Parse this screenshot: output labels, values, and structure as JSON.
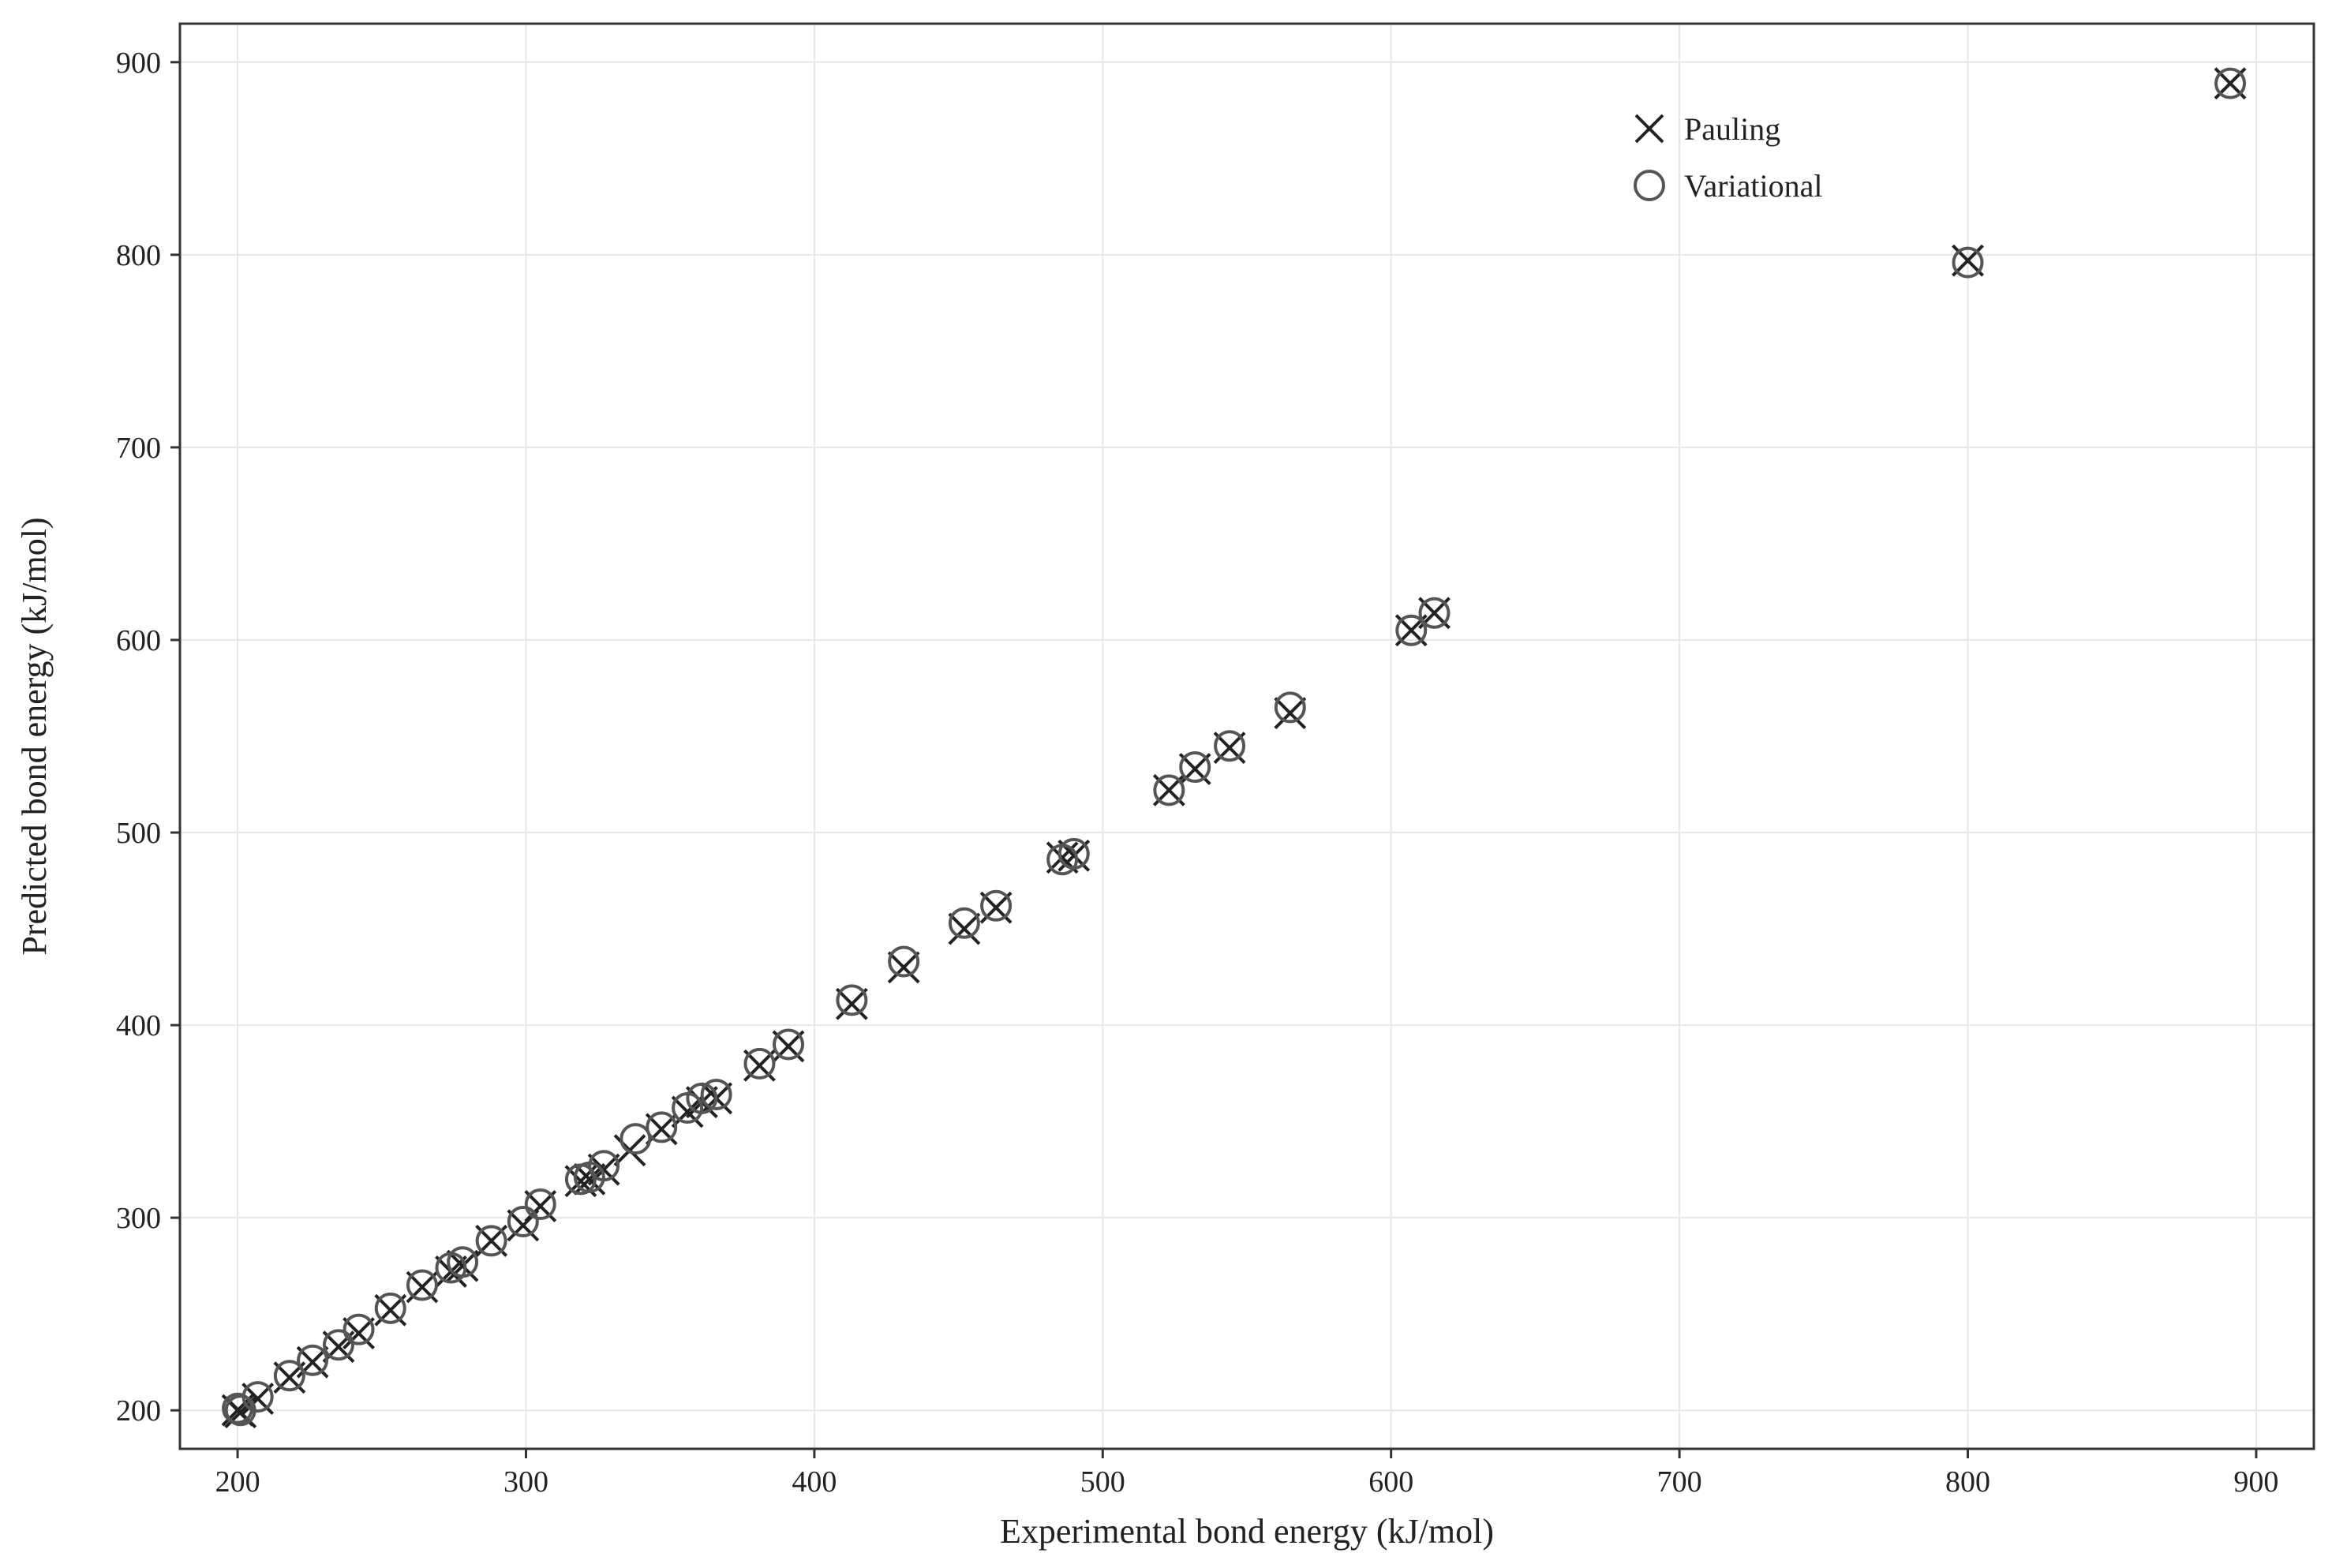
{
  "chart_data": {
    "type": "scatter",
    "title": "",
    "xlabel": "Experimental bond energy (kJ/mol)",
    "ylabel": "Predicted bond energy (kJ/mol)",
    "xlim": [
      180,
      920
    ],
    "ylim": [
      180,
      920
    ],
    "x_ticks": [
      200,
      300,
      400,
      500,
      600,
      700,
      800,
      900
    ],
    "y_ticks": [
      200,
      300,
      400,
      500,
      600,
      700,
      800,
      900
    ],
    "grid": true,
    "legend_position": "top-right",
    "series": [
      {
        "name": "Pauling",
        "marker": "x",
        "color": "#222222",
        "points": [
          [
            200,
            200
          ],
          [
            201,
            199
          ],
          [
            207,
            206
          ],
          [
            218,
            217
          ],
          [
            226,
            225
          ],
          [
            235,
            233
          ],
          [
            242,
            240
          ],
          [
            253,
            252
          ],
          [
            264,
            264
          ],
          [
            274,
            272
          ],
          [
            278,
            275
          ],
          [
            288,
            288
          ],
          [
            299,
            296
          ],
          [
            305,
            306
          ],
          [
            319,
            319
          ],
          [
            322,
            320
          ],
          [
            327,
            325
          ],
          [
            336,
            335
          ],
          [
            347,
            346
          ],
          [
            356,
            355
          ],
          [
            361,
            360
          ],
          [
            366,
            362
          ],
          [
            381,
            379
          ],
          [
            391,
            389
          ],
          [
            413,
            411
          ],
          [
            431,
            430
          ],
          [
            452,
            450
          ],
          [
            463,
            461
          ],
          [
            486,
            487
          ],
          [
            490,
            488
          ],
          [
            523,
            522
          ],
          [
            532,
            533
          ],
          [
            544,
            544
          ],
          [
            565,
            562
          ],
          [
            607,
            605
          ],
          [
            615,
            614
          ],
          [
            800,
            797
          ],
          [
            891,
            889
          ]
        ]
      },
      {
        "name": "Variational",
        "marker": "o",
        "color": "#555555",
        "points": [
          [
            200,
            201
          ],
          [
            201,
            200
          ],
          [
            207,
            207
          ],
          [
            218,
            218
          ],
          [
            226,
            226
          ],
          [
            235,
            234
          ],
          [
            242,
            242
          ],
          [
            253,
            253
          ],
          [
            264,
            265
          ],
          [
            274,
            274
          ],
          [
            278,
            277
          ],
          [
            288,
            288
          ],
          [
            299,
            298
          ],
          [
            305,
            307
          ],
          [
            319,
            320
          ],
          [
            322,
            321
          ],
          [
            327,
            327
          ],
          [
            338,
            341
          ],
          [
            347,
            347
          ],
          [
            356,
            357
          ],
          [
            361,
            362
          ],
          [
            366,
            364
          ],
          [
            381,
            380
          ],
          [
            391,
            390
          ],
          [
            413,
            413
          ],
          [
            431,
            433
          ],
          [
            452,
            453
          ],
          [
            463,
            462
          ],
          [
            486,
            486
          ],
          [
            490,
            489
          ],
          [
            523,
            522
          ],
          [
            532,
            534
          ],
          [
            544,
            545
          ],
          [
            565,
            565
          ],
          [
            607,
            605
          ],
          [
            615,
            614
          ],
          [
            800,
            796
          ],
          [
            891,
            889
          ]
        ]
      }
    ]
  }
}
